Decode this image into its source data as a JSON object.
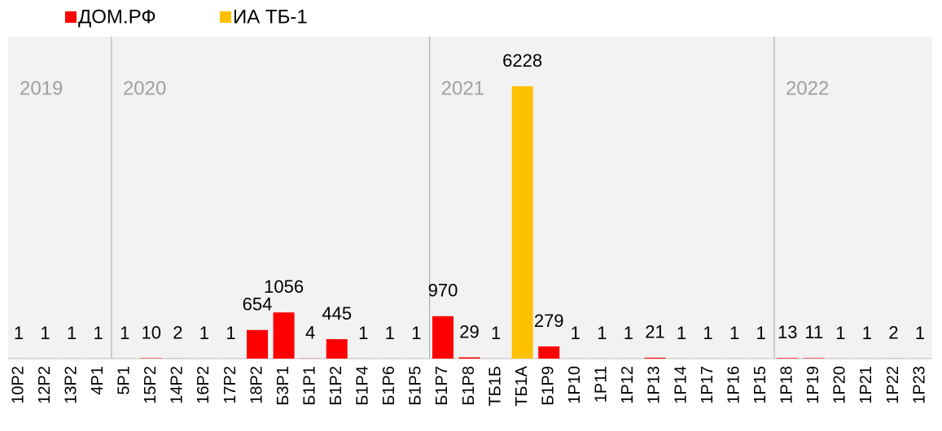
{
  "chart_data": {
    "type": "bar",
    "categories": [
      "10Р2",
      "12Р2",
      "13Р2",
      "4Р1",
      "5Р1",
      "15Р2",
      "14Р2",
      "16Р2",
      "17Р2",
      "18Р2",
      "Б3Р1",
      "Б1Р1",
      "Б1Р2",
      "Б1Р4",
      "Б1Р6",
      "Б1Р5",
      "Б1Р7",
      "Б1Р8",
      "ТБ1Б",
      "ТБ1А",
      "Б1Р9",
      "1Р10",
      "1Р11",
      "1Р12",
      "1Р13",
      "1Р14",
      "1Р17",
      "1Р16",
      "1Р15",
      "1Р18",
      "1Р19",
      "1Р20",
      "1Р21",
      "1Р22",
      "1Р23"
    ],
    "category_years": [
      "2019",
      "2019",
      "2019",
      "2019",
      "2020",
      "2020",
      "2020",
      "2020",
      "2020",
      "2020",
      "2020",
      "2020",
      "2020",
      "2020",
      "2020",
      "2020",
      "2021",
      "2021",
      "2021",
      "2021",
      "2021",
      "2021",
      "2021",
      "2021",
      "2021",
      "2021",
      "2021",
      "2021",
      "2021",
      "2022",
      "2022",
      "2022",
      "2022",
      "2022",
      "2022"
    ],
    "series": [
      {
        "name": "ДОМ.РФ",
        "color": "#ff0000",
        "values": [
          1,
          1,
          1,
          1,
          1,
          10,
          2,
          1,
          1,
          654,
          1056,
          4,
          445,
          1,
          1,
          1,
          970,
          29,
          1,
          null,
          279,
          1,
          1,
          1,
          21,
          1,
          1,
          1,
          1,
          13,
          11,
          1,
          1,
          2,
          1
        ]
      },
      {
        "name": "ИА ТБ-1",
        "color": "#ffc000",
        "values": [
          null,
          null,
          null,
          null,
          null,
          null,
          null,
          null,
          null,
          null,
          null,
          null,
          null,
          null,
          null,
          null,
          null,
          null,
          null,
          6228,
          null,
          null,
          null,
          null,
          null,
          null,
          null,
          null,
          null,
          null,
          null,
          null,
          null,
          null,
          null
        ]
      }
    ],
    "legend": "top-left"
  }
}
